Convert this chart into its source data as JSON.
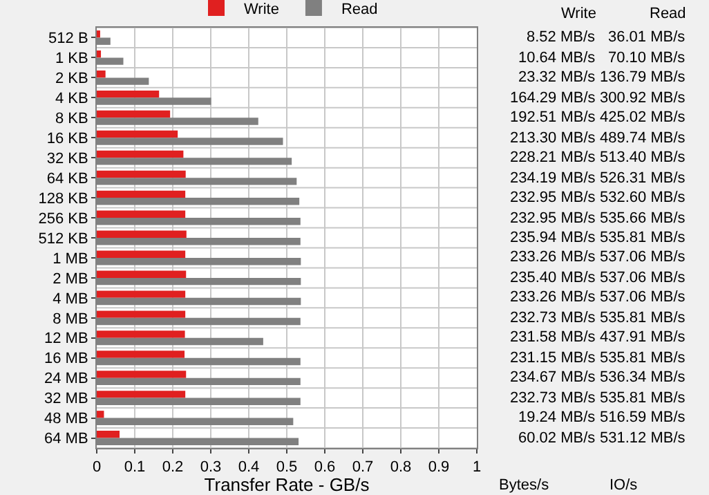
{
  "chart_data": {
    "type": "bar",
    "orientation": "horizontal",
    "categories": [
      "512 B",
      "1 KB",
      "2 KB",
      "4 KB",
      "8 KB",
      "16 KB",
      "32 KB",
      "64 KB",
      "128 KB",
      "256 KB",
      "512 KB",
      "1 MB",
      "2 MB",
      "4 MB",
      "8 MB",
      "12 MB",
      "16 MB",
      "24 MB",
      "32 MB",
      "48 MB",
      "64 MB"
    ],
    "series": [
      {
        "name": "Write",
        "color": "#e02020",
        "values": [
          0.009,
          0.011,
          0.023,
          0.164,
          0.193,
          0.213,
          0.228,
          0.234,
          0.233,
          0.233,
          0.236,
          0.233,
          0.235,
          0.233,
          0.233,
          0.232,
          0.231,
          0.235,
          0.233,
          0.019,
          0.06
        ]
      },
      {
        "name": "Read",
        "color": "#808080",
        "values": [
          0.036,
          0.07,
          0.137,
          0.301,
          0.425,
          0.49,
          0.513,
          0.526,
          0.533,
          0.536,
          0.536,
          0.537,
          0.537,
          0.537,
          0.536,
          0.438,
          0.536,
          0.536,
          0.536,
          0.517,
          0.531
        ]
      }
    ],
    "xlabel": "Transfer Rate - GB/s",
    "xlim": [
      0,
      1
    ],
    "xticks": [
      0,
      0.1,
      0.2,
      0.3,
      0.4,
      0.5,
      0.6,
      0.7,
      0.8,
      0.9,
      1
    ],
    "grid": true,
    "legend": "top",
    "annotations": [
      "Write",
      "Read",
      "8.52 MB/s",
      "36.01 MB/s",
      "10.64 MB/s",
      "70.10 MB/s",
      "23.32 MB/s",
      "136.79 MB/s",
      "164.29 MB/s",
      "300.92 MB/s",
      "192.51 MB/s",
      "425.02 MB/s",
      "213.30 MB/s",
      "489.74 MB/s",
      "228.21 MB/s",
      "513.40 MB/s",
      "234.19 MB/s",
      "526.31 MB/s",
      "232.95 MB/s",
      "532.60 MB/s",
      "232.95 MB/s",
      "535.66 MB/s",
      "235.94 MB/s",
      "535.81 MB/s",
      "233.26 MB/s",
      "537.06 MB/s",
      "235.40 MB/s",
      "537.06 MB/s",
      "233.26 MB/s",
      "537.06 MB/s",
      "232.73 MB/s",
      "535.81 MB/s",
      "231.58 MB/s",
      "437.91 MB/s",
      "231.15 MB/s",
      "535.81 MB/s",
      "234.67 MB/s",
      "536.34 MB/s",
      "232.73 MB/s",
      "535.81 MB/s",
      "19.24 MB/s",
      "516.59 MB/s",
      "60.02 MB/s",
      "531.12 MB/s",
      "Bytes/s",
      "IO/s"
    ]
  }
}
